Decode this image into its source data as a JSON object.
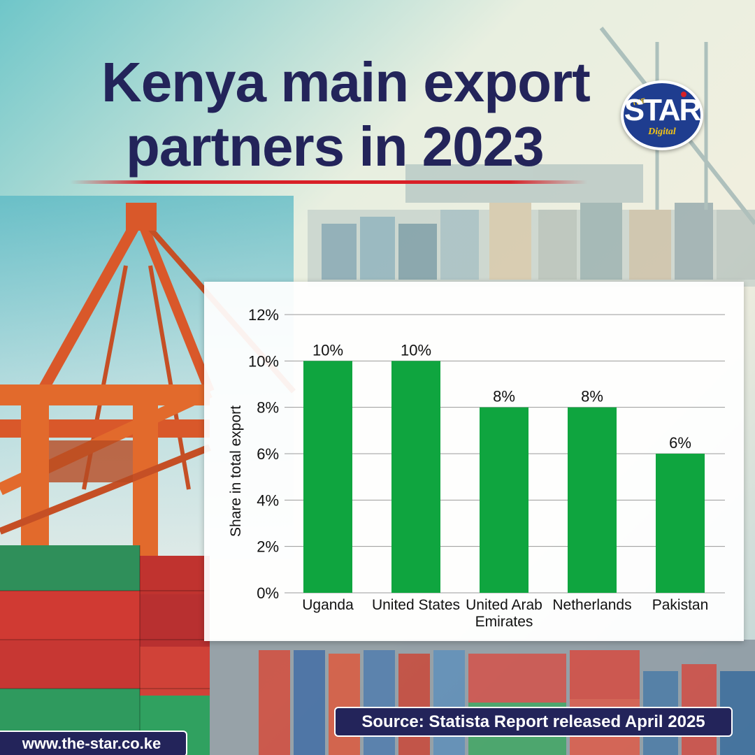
{
  "title": {
    "line1": "Kenya main export",
    "line2": "partners in 2023"
  },
  "logo": {
    "the": "THE",
    "star": "STAR",
    "digital": "Digital"
  },
  "colors": {
    "bar": "#0fa53f",
    "title": "#23245a",
    "rule": "#d82027",
    "pill": "#23245a"
  },
  "chart_data": {
    "type": "bar",
    "categories": [
      "Uganda",
      "United States",
      "United Arab Emirates",
      "Netherlands",
      "Pakistan"
    ],
    "category_lines": [
      [
        "Uganda"
      ],
      [
        "United States"
      ],
      [
        "United Arab",
        "Emirates"
      ],
      [
        "Netherlands"
      ],
      [
        "Pakistan"
      ]
    ],
    "values": [
      10,
      10,
      8,
      8,
      6
    ],
    "data_labels": [
      "10%",
      "10%",
      "8%",
      "8%",
      "6%"
    ],
    "ylabel": "Share in total export",
    "ylim": [
      0,
      12
    ],
    "yticks": [
      0,
      2,
      4,
      6,
      8,
      10,
      12
    ],
    "ytick_labels": [
      "0%",
      "2%",
      "4%",
      "6%",
      "8%",
      "10%",
      "12%"
    ],
    "grid": true
  },
  "source": "Source: Statista Report released April 2025",
  "url": "www.the-star.co.ke"
}
